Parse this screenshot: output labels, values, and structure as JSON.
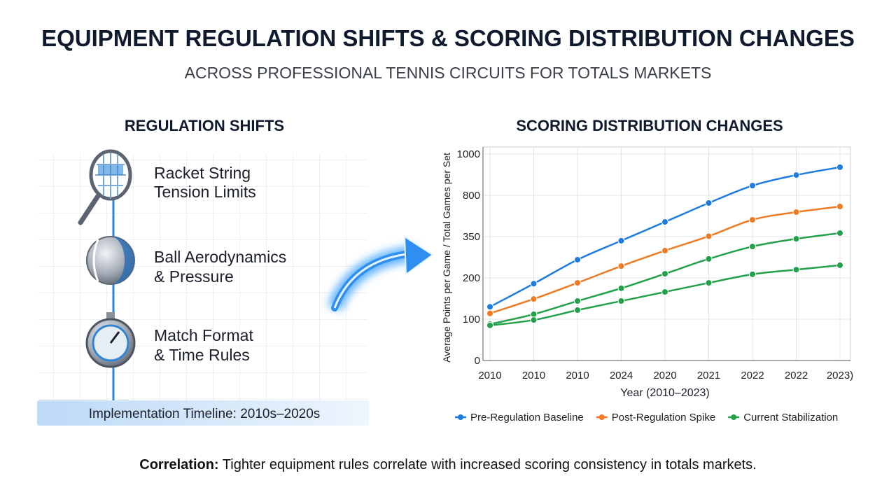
{
  "header": {
    "title": "EQUIPMENT REGULATION SHIFTS & SCORING DISTRIBUTION CHANGES",
    "subtitle": "ACROSS PROFESSIONAL TENNIS CIRCUITS FOR TOTALS MARKETS"
  },
  "regulation_panel": {
    "title": "REGULATION SHIFTS",
    "items": [
      [
        "Racket String",
        "Tension Limits"
      ],
      [
        "Ball Aerodynamics",
        "& Pressure"
      ],
      [
        "Match Format",
        "& Time Rules"
      ]
    ],
    "timeline": "Implementation Timeline: 2010s–2020s"
  },
  "chart_data": {
    "type": "line",
    "title": "SCORING DISTRIBUTION CHANGES",
    "x_label": "Year (2010–2023)",
    "y_label": "Average Points per Game / Total Games per Set",
    "categories": [
      "2010",
      "2010",
      "2010",
      "2024",
      "2020",
      "2021",
      "2022",
      "2022",
      "2023)"
    ],
    "series": [
      {
        "name": "Pre-Regulation Baseline",
        "color": "#1e7be0",
        "values": [
          130,
          186,
          266,
          335,
          510,
          716,
          847,
          898,
          936
        ]
      },
      {
        "name": "Post-Regulation Spike",
        "color": "#f07a22",
        "values": [
          114,
          149,
          188,
          243,
          299,
          354,
          533,
          617,
          678
        ]
      },
      {
        "name": "Current Stabilization",
        "color": "#22a04a",
        "values": [
          88,
          112,
          144,
          175,
          215,
          269,
          314,
          342,
          388
        ]
      },
      {
        "color": "#22a04a",
        "values": [
          85,
          98,
          122,
          144,
          166,
          188,
          213,
          230,
          246
        ]
      }
    ],
    "ylim": [
      0,
      1000
    ],
    "yticks": [
      0,
      100,
      200,
      350,
      800,
      1000
    ],
    "grid": true,
    "legend": "bottom"
  },
  "footer": {
    "label": "Correlation:",
    "text": "Tighter equipment rules correlate with increased scoring consistency in totals markets."
  }
}
